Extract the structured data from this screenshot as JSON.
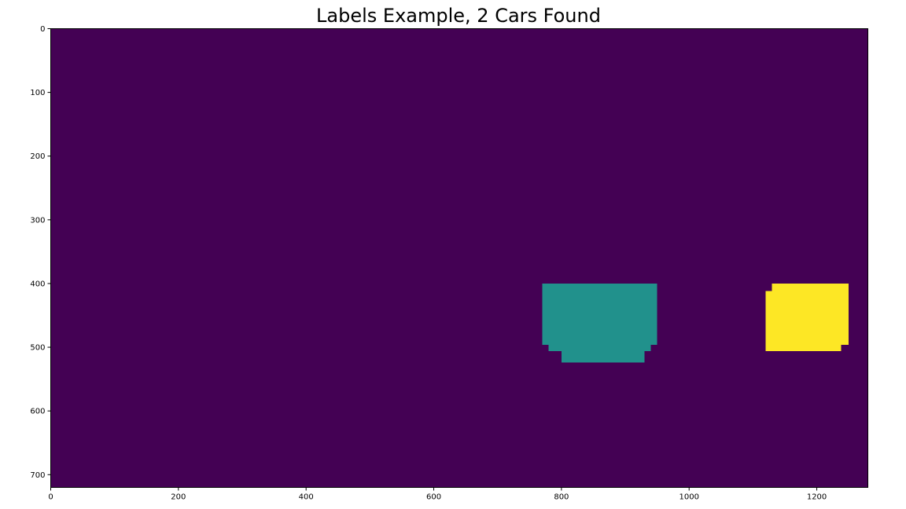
{
  "chart_data": {
    "type": "heatmap",
    "title": "Labels Example, 2 Cars Found",
    "xlabel": "",
    "ylabel": "",
    "xlim": [
      0,
      1280
    ],
    "ylim": [
      0,
      720
    ],
    "y_inverted": true,
    "grid": false,
    "x_ticks": [
      0,
      200,
      400,
      600,
      800,
      1000,
      1200
    ],
    "y_ticks": [
      0,
      100,
      200,
      300,
      400,
      500,
      600,
      700
    ],
    "colors": {
      "background": "#440154",
      "label_1": "#21918c",
      "label_2": "#fde725"
    },
    "regions": [
      {
        "label": 1,
        "color": "#21918c",
        "outline": [
          [
            770,
            400
          ],
          [
            950,
            400
          ],
          [
            950,
            496
          ],
          [
            940,
            496
          ],
          [
            940,
            506
          ],
          [
            930,
            506
          ],
          [
            930,
            524
          ],
          [
            800,
            524
          ],
          [
            800,
            506
          ],
          [
            780,
            506
          ],
          [
            780,
            496
          ],
          [
            770,
            496
          ]
        ]
      },
      {
        "label": 2,
        "color": "#fde725",
        "outline": [
          [
            1130,
            400
          ],
          [
            1250,
            400
          ],
          [
            1250,
            496
          ],
          [
            1238,
            496
          ],
          [
            1238,
            506
          ],
          [
            1120,
            506
          ],
          [
            1120,
            412
          ],
          [
            1130,
            412
          ]
        ]
      }
    ]
  }
}
